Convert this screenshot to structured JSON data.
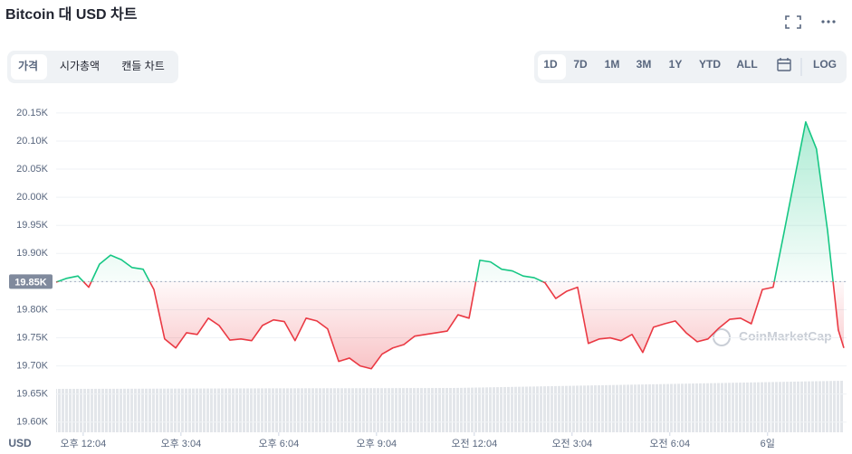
{
  "header": {
    "title": "Bitcoin 대 USD 차트"
  },
  "tabs": [
    "가격",
    "시가총액",
    "캔들 차트"
  ],
  "ranges": [
    "1D",
    "7D",
    "1M",
    "3M",
    "1Y",
    "YTD",
    "ALL"
  ],
  "log": "LOG",
  "chart_data": {
    "type": "line",
    "ylabel": "USD",
    "watermark": "CoinMarketCap",
    "up_color": "#16c784",
    "down_color": "#ea3943",
    "reference": {
      "value": 19850,
      "label": "19.85K"
    },
    "xlim": [
      11.24,
      35.41
    ],
    "ylim": [
      19582,
      20182
    ],
    "grid": true,
    "xticks": [
      {
        "value": 12.07,
        "label": "오후 12:04"
      },
      {
        "value": 15.07,
        "label": "오후 3:04"
      },
      {
        "value": 18.07,
        "label": "오후 6:04"
      },
      {
        "value": 21.07,
        "label": "오후 9:04"
      },
      {
        "value": 24.07,
        "label": "오전 12:04"
      },
      {
        "value": 27.07,
        "label": "오전 3:04"
      },
      {
        "value": 30.07,
        "label": "오전 6:04"
      },
      {
        "value": 33.07,
        "label": "6일"
      }
    ],
    "yticks": [
      {
        "value": 19600,
        "label": "19.60K"
      },
      {
        "value": 19650,
        "label": "19.65K"
      },
      {
        "value": 19700,
        "label": "19.70K"
      },
      {
        "value": 19750,
        "label": "19.75K"
      },
      {
        "value": 19800,
        "label": "19.80K"
      },
      {
        "value": 19850,
        "label": "19.85K"
      },
      {
        "value": 19900,
        "label": "19.90K"
      },
      {
        "value": 19950,
        "label": "19.95K"
      },
      {
        "value": 20000,
        "label": "20.00K"
      },
      {
        "value": 20050,
        "label": "20.05K"
      },
      {
        "value": 20100,
        "label": "20.10K"
      },
      {
        "value": 20150,
        "label": "20.15K"
      }
    ],
    "x": [
      11.24,
      11.57,
      11.91,
      12.24,
      12.57,
      12.91,
      13.24,
      13.57,
      13.91,
      14.24,
      14.57,
      14.91,
      15.24,
      15.57,
      15.91,
      16.24,
      16.57,
      16.91,
      17.24,
      17.57,
      17.91,
      18.24,
      18.57,
      18.91,
      19.24,
      19.57,
      19.91,
      20.24,
      20.57,
      20.91,
      21.24,
      21.57,
      21.91,
      22.24,
      22.57,
      22.91,
      23.24,
      23.57,
      23.91,
      24.24,
      24.57,
      24.91,
      25.24,
      25.57,
      25.91,
      26.24,
      26.57,
      26.91,
      27.24,
      27.57,
      27.91,
      28.24,
      28.57,
      28.91,
      29.24,
      29.57,
      29.91,
      30.24,
      30.57,
      30.91,
      31.24,
      31.57,
      31.91,
      32.24,
      32.57,
      32.91,
      33.24,
      33.57,
      33.91,
      34.24,
      34.57,
      34.91,
      35.24,
      35.41
    ],
    "series": [
      {
        "name": "Price",
        "values": [
          19849,
          19856,
          19860,
          19840,
          19881,
          19897,
          19889,
          19875,
          19872,
          19836,
          19748,
          19732,
          19759,
          19756,
          19785,
          19772,
          19746,
          19748,
          19745,
          19772,
          19782,
          19779,
          19745,
          19785,
          19780,
          19766,
          19708,
          19714,
          19700,
          19695,
          19721,
          19732,
          19738,
          19753,
          19756,
          19759,
          19762,
          19791,
          19785,
          19888,
          19885,
          19872,
          19869,
          19860,
          19857,
          19848,
          19820,
          19833,
          19840,
          19740,
          19748,
          19750,
          19745,
          19756,
          19724,
          19769,
          19775,
          19780,
          19759,
          19743,
          19748,
          19767,
          19783,
          19785,
          19775,
          19836,
          19840,
          19936,
          20037,
          20134,
          20086,
          19941,
          19764,
          19732
        ]
      }
    ]
  }
}
